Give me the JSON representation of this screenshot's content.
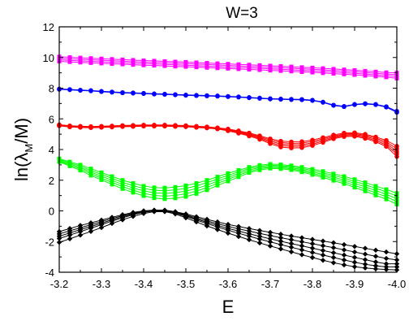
{
  "chart_data": {
    "type": "line",
    "title": "W=3",
    "xlabel": "E",
    "ylabel": "ln(λM/M)",
    "ylabel_parts": {
      "main": "ln(λ",
      "sub": "M",
      "tail": "/M)"
    },
    "xlim": [
      -3.2,
      -4.0
    ],
    "ylim": [
      -4,
      12
    ],
    "x_reversed": true,
    "grid": false,
    "legend": "none",
    "xticks": [
      -3.2,
      -3.3,
      -3.4,
      -3.5,
      -3.6,
      -3.7,
      -3.8,
      -3.9,
      -4.0
    ],
    "xtick_labels": [
      "-3.2",
      "-3.3",
      "-3.4",
      "-3.5",
      "-3.6",
      "-3.7",
      "-3.8",
      "-3.9",
      "-4.0"
    ],
    "yticks": [
      -4,
      -2,
      0,
      2,
      4,
      6,
      8,
      10,
      12
    ],
    "ytick_labels": [
      "-4",
      "-2",
      "0",
      "2",
      "4",
      "6",
      "8",
      "10",
      "12"
    ],
    "x": [
      -3.2,
      -3.225,
      -3.25,
      -3.275,
      -3.3,
      -3.325,
      -3.35,
      -3.375,
      -3.4,
      -3.425,
      -3.45,
      -3.475,
      -3.5,
      -3.525,
      -3.55,
      -3.575,
      -3.6,
      -3.625,
      -3.65,
      -3.675,
      -3.7,
      -3.725,
      -3.75,
      -3.775,
      -3.8,
      -3.825,
      -3.85,
      -3.875,
      -3.9,
      -3.925,
      -3.95,
      -3.975,
      -4.0
    ],
    "groups": [
      {
        "color": "#ff00ff",
        "marker": "square",
        "lines": [
          [
            10.05,
            10.01,
            9.98,
            9.95,
            9.92,
            9.89,
            9.86,
            9.83,
            9.8,
            9.78,
            9.75,
            9.72,
            9.7,
            9.67,
            9.64,
            9.61,
            9.58,
            9.55,
            9.52,
            9.49,
            9.46,
            9.43,
            9.4,
            9.36,
            9.33,
            9.29,
            9.25,
            9.21,
            9.17,
            9.12,
            9.07,
            9.02,
            9.0
          ],
          [
            9.95,
            9.91,
            9.88,
            9.85,
            9.82,
            9.79,
            9.76,
            9.73,
            9.7,
            9.68,
            9.65,
            9.62,
            9.6,
            9.57,
            9.54,
            9.51,
            9.48,
            9.45,
            9.42,
            9.39,
            9.36,
            9.33,
            9.3,
            9.26,
            9.23,
            9.19,
            9.15,
            9.11,
            9.07,
            9.02,
            8.97,
            8.92,
            8.88
          ],
          [
            9.85,
            9.81,
            9.78,
            9.75,
            9.72,
            9.69,
            9.66,
            9.63,
            9.6,
            9.58,
            9.55,
            9.52,
            9.5,
            9.47,
            9.44,
            9.41,
            9.38,
            9.35,
            9.32,
            9.29,
            9.26,
            9.23,
            9.2,
            9.16,
            9.13,
            9.09,
            9.05,
            9.01,
            8.97,
            8.92,
            8.87,
            8.82,
            8.76
          ],
          [
            9.75,
            9.71,
            9.68,
            9.65,
            9.62,
            9.59,
            9.56,
            9.53,
            9.5,
            9.48,
            9.45,
            9.42,
            9.4,
            9.37,
            9.34,
            9.31,
            9.28,
            9.25,
            9.22,
            9.19,
            9.16,
            9.13,
            9.1,
            9.06,
            9.03,
            8.99,
            8.95,
            8.91,
            8.87,
            8.82,
            8.77,
            8.72,
            8.64
          ]
        ]
      },
      {
        "color": "#0000ff",
        "marker": "circle",
        "lines": [
          [
            7.95,
            7.92,
            7.88,
            7.85,
            7.8,
            7.76,
            7.72,
            7.7,
            7.67,
            7.64,
            7.62,
            7.59,
            7.56,
            7.54,
            7.52,
            7.5,
            7.47,
            7.44,
            7.4,
            7.36,
            7.32,
            7.3,
            7.28,
            7.27,
            7.22,
            7.1,
            6.9,
            6.82,
            6.95,
            7.0,
            6.95,
            6.8,
            6.5
          ],
          [
            7.92,
            7.89,
            7.85,
            7.82,
            7.77,
            7.73,
            7.69,
            7.67,
            7.64,
            7.61,
            7.59,
            7.56,
            7.53,
            7.51,
            7.49,
            7.47,
            7.44,
            7.41,
            7.37,
            7.33,
            7.29,
            7.27,
            7.25,
            7.24,
            7.19,
            7.07,
            6.87,
            6.79,
            6.92,
            6.97,
            6.92,
            6.76,
            6.42
          ]
        ]
      },
      {
        "color": "#ff0000",
        "marker": "circle",
        "lines": [
          [
            5.62,
            5.55,
            5.52,
            5.5,
            5.52,
            5.54,
            5.57,
            5.58,
            5.6,
            5.6,
            5.6,
            5.58,
            5.56,
            5.52,
            5.48,
            5.42,
            5.34,
            5.22,
            5.08,
            4.9,
            4.7,
            4.55,
            4.5,
            4.52,
            4.62,
            4.78,
            4.95,
            5.08,
            5.1,
            5.0,
            4.82,
            4.6,
            4.22
          ],
          [
            5.6,
            5.53,
            5.5,
            5.48,
            5.5,
            5.52,
            5.55,
            5.56,
            5.58,
            5.58,
            5.58,
            5.56,
            5.54,
            5.5,
            5.46,
            5.4,
            5.31,
            5.18,
            5.03,
            4.84,
            4.62,
            4.46,
            4.4,
            4.42,
            4.53,
            4.7,
            4.88,
            5.02,
            5.04,
            4.93,
            4.74,
            4.5,
            4.05
          ],
          [
            5.58,
            5.51,
            5.48,
            5.46,
            5.48,
            5.5,
            5.53,
            5.54,
            5.56,
            5.56,
            5.56,
            5.54,
            5.52,
            5.48,
            5.44,
            5.38,
            5.28,
            5.14,
            4.98,
            4.78,
            4.54,
            4.36,
            4.3,
            4.32,
            4.44,
            4.62,
            4.82,
            4.96,
            4.98,
            4.86,
            4.66,
            4.4,
            3.88
          ],
          [
            5.56,
            5.49,
            5.46,
            5.44,
            5.46,
            5.48,
            5.51,
            5.52,
            5.54,
            5.54,
            5.54,
            5.52,
            5.5,
            5.46,
            5.42,
            5.36,
            5.25,
            5.1,
            4.93,
            4.72,
            4.46,
            4.26,
            4.2,
            4.22,
            4.35,
            4.54,
            4.76,
            4.9,
            4.92,
            4.79,
            4.58,
            4.3,
            3.71
          ],
          [
            5.54,
            5.47,
            5.44,
            5.42,
            5.44,
            5.46,
            5.49,
            5.5,
            5.52,
            5.52,
            5.52,
            5.5,
            5.48,
            5.44,
            5.4,
            5.34,
            5.22,
            5.06,
            4.88,
            4.66,
            4.38,
            4.16,
            4.1,
            4.12,
            4.26,
            4.46,
            4.7,
            4.84,
            4.86,
            4.72,
            4.5,
            4.2,
            3.54
          ]
        ]
      },
      {
        "color": "#00ff00",
        "marker": "square",
        "lines": [
          [
            3.4,
            3.2,
            3.0,
            2.75,
            2.5,
            2.25,
            2.0,
            1.8,
            1.62,
            1.52,
            1.5,
            1.55,
            1.65,
            1.8,
            2.0,
            2.22,
            2.45,
            2.65,
            2.85,
            2.98,
            3.05,
            3.02,
            2.95,
            2.85,
            2.72,
            2.58,
            2.42,
            2.25,
            2.05,
            1.85,
            1.62,
            1.4,
            1.15
          ],
          [
            3.35,
            3.13,
            2.91,
            2.64,
            2.38,
            2.12,
            1.86,
            1.65,
            1.46,
            1.35,
            1.32,
            1.37,
            1.47,
            1.63,
            1.84,
            2.08,
            2.32,
            2.54,
            2.76,
            2.9,
            2.98,
            2.95,
            2.88,
            2.77,
            2.63,
            2.48,
            2.31,
            2.13,
            1.92,
            1.71,
            1.47,
            1.24,
            0.97
          ],
          [
            3.3,
            3.06,
            2.82,
            2.53,
            2.26,
            1.99,
            1.72,
            1.5,
            1.3,
            1.18,
            1.14,
            1.19,
            1.29,
            1.46,
            1.68,
            1.94,
            2.19,
            2.43,
            2.67,
            2.82,
            2.91,
            2.88,
            2.81,
            2.69,
            2.54,
            2.38,
            2.2,
            2.01,
            1.79,
            1.57,
            1.32,
            1.08,
            0.79
          ],
          [
            3.25,
            2.99,
            2.73,
            2.42,
            2.14,
            1.86,
            1.58,
            1.35,
            1.14,
            1.01,
            0.96,
            1.01,
            1.11,
            1.29,
            1.52,
            1.8,
            2.06,
            2.32,
            2.58,
            2.74,
            2.84,
            2.81,
            2.74,
            2.61,
            2.45,
            2.28,
            2.09,
            1.89,
            1.66,
            1.43,
            1.17,
            0.92,
            0.61
          ],
          [
            3.2,
            2.92,
            2.64,
            2.31,
            2.02,
            1.73,
            1.44,
            1.2,
            0.98,
            0.84,
            0.78,
            0.83,
            0.93,
            1.12,
            1.36,
            1.66,
            1.93,
            2.21,
            2.49,
            2.66,
            2.77,
            2.74,
            2.67,
            2.53,
            2.36,
            2.18,
            1.98,
            1.77,
            1.53,
            1.29,
            1.02,
            0.76,
            0.43
          ]
        ]
      },
      {
        "color": "#000000",
        "marker": "diamond",
        "lines": [
          [
            -1.35,
            -1.15,
            -0.95,
            -0.78,
            -0.6,
            -0.42,
            -0.25,
            -0.1,
            0.0,
            0.05,
            0.05,
            -0.05,
            -0.2,
            -0.38,
            -0.55,
            -0.72,
            -0.88,
            -1.02,
            -1.15,
            -1.28,
            -1.4,
            -1.52,
            -1.64,
            -1.75,
            -1.86,
            -1.97,
            -2.08,
            -2.2,
            -2.32,
            -2.44,
            -2.56,
            -2.68,
            -2.8
          ],
          [
            -1.5,
            -1.3,
            -1.1,
            -0.9,
            -0.7,
            -0.5,
            -0.32,
            -0.15,
            -0.03,
            0.03,
            0.03,
            -0.08,
            -0.26,
            -0.46,
            -0.65,
            -0.84,
            -1.01,
            -1.17,
            -1.32,
            -1.47,
            -1.61,
            -1.75,
            -1.88,
            -2.01,
            -2.14,
            -2.27,
            -2.4,
            -2.54,
            -2.68,
            -2.82,
            -2.96,
            -3.1,
            -3.2
          ],
          [
            -1.65,
            -1.44,
            -1.22,
            -1.02,
            -0.8,
            -0.58,
            -0.38,
            -0.2,
            -0.06,
            0.01,
            0.01,
            -0.11,
            -0.31,
            -0.53,
            -0.74,
            -0.95,
            -1.14,
            -1.32,
            -1.49,
            -1.66,
            -1.82,
            -1.98,
            -2.13,
            -2.28,
            -2.43,
            -2.58,
            -2.73,
            -2.88,
            -3.03,
            -3.18,
            -3.33,
            -3.45,
            -3.45
          ],
          [
            -1.8,
            -1.58,
            -1.35,
            -1.13,
            -0.9,
            -0.66,
            -0.45,
            -0.25,
            -0.09,
            -0.01,
            -0.01,
            -0.14,
            -0.36,
            -0.6,
            -0.83,
            -1.05,
            -1.26,
            -1.46,
            -1.65,
            -1.84,
            -2.02,
            -2.2,
            -2.37,
            -2.54,
            -2.71,
            -2.88,
            -3.04,
            -3.2,
            -3.35,
            -3.48,
            -3.58,
            -3.65,
            -3.65
          ],
          [
            -2.05,
            -1.82,
            -1.58,
            -1.34,
            -1.09,
            -0.82,
            -0.58,
            -0.36,
            -0.17,
            -0.05,
            -0.05,
            -0.2,
            -0.45,
            -0.72,
            -0.98,
            -1.22,
            -1.45,
            -1.67,
            -1.88,
            -2.09,
            -2.29,
            -2.48,
            -2.67,
            -2.86,
            -3.04,
            -3.22,
            -3.38,
            -3.52,
            -3.64,
            -3.72,
            -3.78,
            -3.82,
            -3.85
          ]
        ]
      }
    ]
  }
}
